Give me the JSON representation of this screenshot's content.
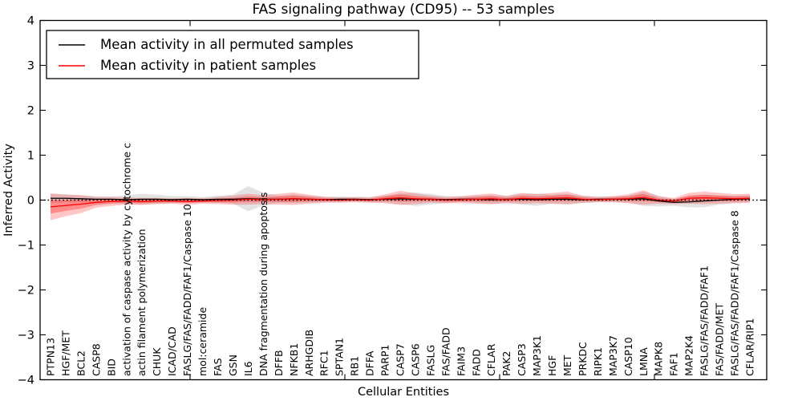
{
  "figure": {
    "title": "FAS signaling pathway (CD95) -- 53 samples",
    "xlabel": "Cellular Entities",
    "ylabel": "Inferred Activity"
  },
  "legend": {
    "items": [
      {
        "label": "Mean activity in all permuted samples",
        "color": "#000000"
      },
      {
        "label": "Mean activity in patient samples",
        "color": "#ff0000"
      }
    ]
  },
  "chart_data": {
    "type": "line",
    "title": "FAS signaling pathway (CD95) -- 53 samples",
    "xlabel": "Cellular Entities",
    "ylabel": "Inferred Activity",
    "ylim": [
      -4,
      4
    ],
    "y_ticks": [
      -4,
      -3,
      -2,
      -1,
      0,
      1,
      2,
      3,
      4
    ],
    "x_major_tick_indices": [
      10,
      20,
      30,
      40
    ],
    "grid": false,
    "legend_position": "upper left",
    "zero_line": {
      "y": 0,
      "style": "dotted",
      "color": "#000000"
    },
    "colors": {
      "permuted_line": "#000000",
      "patient_line": "#ff0000",
      "permuted_band": "#999999",
      "patient_band": "#ff0000",
      "permuted_band_opacity": 0.28,
      "patient_band_outer_opacity": 0.22,
      "patient_band_inner_opacity": 0.3
    },
    "categories": [
      "PTPN13",
      "HGF/MET",
      "BCL2",
      "CASP8",
      "BID",
      "activation of caspase activity by cytochrome c",
      "actin filament polymerization",
      "CHUK",
      "ICAD/CAD",
      "FASLG/FAS/FADD/FAF1/Caspase 10",
      "mol:ceramide",
      "FAS",
      "GSN",
      "IL6",
      "DNA fragmentation during apoptosis",
      "DFFB",
      "NFKB1",
      "ARHGDIB",
      "RFC1",
      "SPTAN1",
      "RB1",
      "DFFA",
      "PARP1",
      "CASP7",
      "CASP6",
      "FASLG",
      "FAS/FADD",
      "FAIM3",
      "FADD",
      "CFLAR",
      "PAK2",
      "CASP3",
      "MAP3K1",
      "HGF",
      "MET",
      "PRKDC",
      "RIPK1",
      "MAP3K7",
      "CASP10",
      "LMNA",
      "MAPK8",
      "FAF1",
      "MAP2K4",
      "FASLG/FAS/FADD/FAF1",
      "FAS/FADD/MET",
      "FASLG/FAS/FADD/FAF1/Caspase 8",
      "CFLAR/RIP1"
    ],
    "series": [
      {
        "name": "Mean activity in all permuted samples",
        "role": "permuted_mean",
        "values": [
          0.04,
          0.04,
          0.03,
          0.02,
          0.02,
          0.01,
          0.02,
          0.02,
          0.01,
          0.02,
          0.01,
          0.02,
          0.02,
          0.03,
          0.02,
          0.02,
          0.03,
          0.02,
          0.01,
          0.02,
          0.02,
          0.01,
          0.02,
          0.03,
          0.02,
          0.02,
          0.01,
          0.02,
          0.02,
          0.01,
          0.02,
          0.02,
          0.01,
          0.02,
          0.02,
          0.01,
          0.02,
          0.02,
          0.02,
          0.03,
          -0.02,
          -0.05,
          -0.04,
          -0.02,
          0,
          0.02,
          0.03
        ]
      },
      {
        "name": "Permuted samples spread (shaded gray band half-width)",
        "role": "permuted_band_halfwidth",
        "values": [
          0.1,
          0.09,
          0.08,
          0.07,
          0.06,
          0.1,
          0.12,
          0.1,
          0.08,
          0.07,
          0.06,
          0.08,
          0.1,
          0.28,
          0.14,
          0.08,
          0.1,
          0.08,
          0.06,
          0.06,
          0.05,
          0.06,
          0.08,
          0.12,
          0.15,
          0.12,
          0.08,
          0.06,
          0.08,
          0.1,
          0.08,
          0.12,
          0.14,
          0.1,
          0.12,
          0.08,
          0.06,
          0.06,
          0.08,
          0.16,
          0.12,
          0.08,
          0.12,
          0.14,
          0.1,
          0.08,
          0.08
        ]
      },
      {
        "name": "Mean activity in patient samples",
        "role": "patient_mean",
        "values": [
          -0.15,
          -0.12,
          -0.09,
          -0.05,
          -0.03,
          -0.02,
          -0.03,
          -0.02,
          -0.02,
          -0.03,
          -0.02,
          -0.01,
          0,
          0.02,
          0.01,
          0.02,
          0.03,
          0.02,
          0.01,
          0,
          0.01,
          0,
          0.03,
          0.05,
          0.03,
          0.02,
          0,
          0.01,
          0.02,
          0.03,
          0.01,
          0.04,
          0.03,
          0.04,
          0.05,
          0.02,
          0.01,
          0.02,
          0.03,
          0.06,
          0,
          -0.02,
          0.04,
          0.05,
          0.04,
          0.03,
          0.04
        ]
      },
      {
        "name": "Patient samples spread (shaded red band half-width)",
        "role": "patient_band_halfwidth",
        "values": [
          0.3,
          0.24,
          0.2,
          0.12,
          0.1,
          0.08,
          0.08,
          0.07,
          0.06,
          0.08,
          0.06,
          0.08,
          0.1,
          0.12,
          0.1,
          0.12,
          0.14,
          0.1,
          0.07,
          0.06,
          0.06,
          0.06,
          0.1,
          0.16,
          0.12,
          0.08,
          0.07,
          0.08,
          0.1,
          0.12,
          0.08,
          0.12,
          0.1,
          0.12,
          0.14,
          0.08,
          0.06,
          0.07,
          0.1,
          0.16,
          0.08,
          0.07,
          0.12,
          0.14,
          0.12,
          0.1,
          0.1
        ]
      }
    ]
  }
}
